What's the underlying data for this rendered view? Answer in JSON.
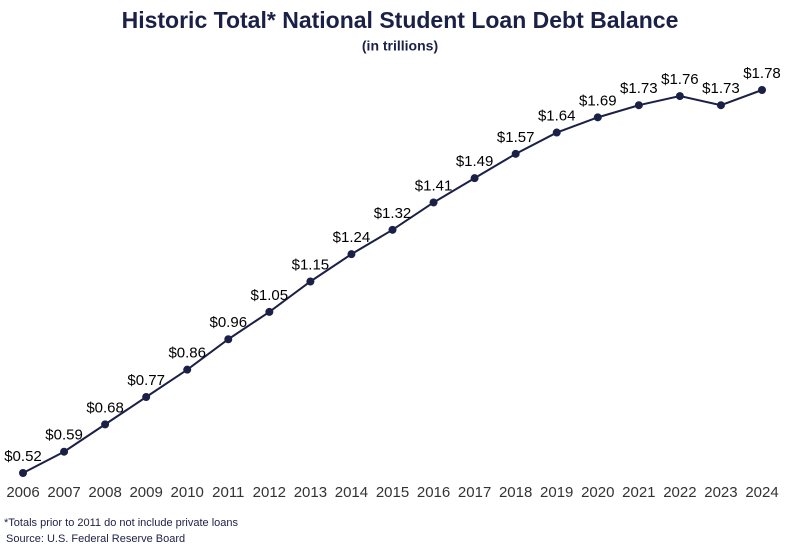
{
  "chart_data": {
    "type": "line",
    "title": "Historic Total* National Student Loan Debt Balance",
    "subtitle": "(in trillions)",
    "categories": [
      "2006",
      "2007",
      "2008",
      "2009",
      "2010",
      "2011",
      "2012",
      "2013",
      "2014",
      "2015",
      "2016",
      "2017",
      "2018",
      "2019",
      "2020",
      "2021",
      "2022",
      "2023",
      "2024"
    ],
    "series": [
      {
        "color": "#1b2047",
        "values": [
          0.52,
          0.59,
          0.68,
          0.77,
          0.86,
          0.96,
          1.05,
          1.15,
          1.24,
          1.32,
          1.41,
          1.49,
          1.57,
          1.64,
          1.69,
          1.73,
          1.76,
          1.73,
          1.78
        ],
        "value_labels": [
          "$0.52",
          "$0.59",
          "$0.68",
          "$0.77",
          "$0.86",
          "$0.96",
          "$1.05",
          "$1.15",
          "$1.24",
          "$1.32",
          "$1.41",
          "$1.49",
          "$1.57",
          "$1.64",
          "$1.69",
          "$1.73",
          "$1.76",
          "$1.73",
          "$1.78"
        ]
      }
    ],
    "notes": [
      "*Totals prior to 2011 do not include private loans",
      "Source: U.S. Federal Reserve Board"
    ]
  }
}
